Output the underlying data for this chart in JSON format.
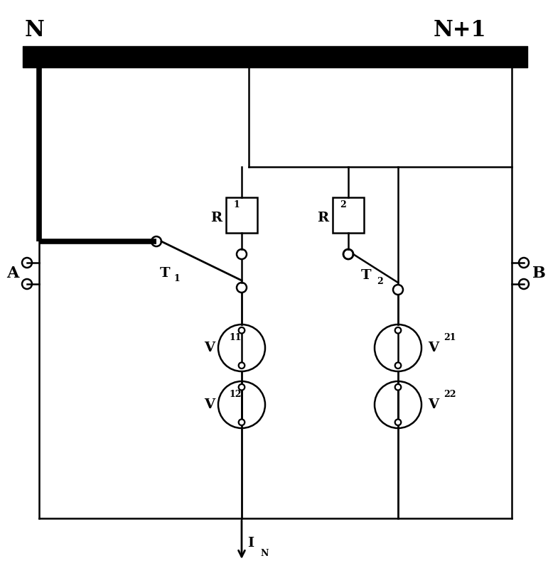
{
  "title_N": "N",
  "title_N1": "N+1",
  "label_A": "A",
  "label_B": "B",
  "label_R1": "R",
  "label_R1_sub": "1",
  "label_R2": "R",
  "label_R2_sub": "2",
  "label_T1": "T",
  "label_T1_sub": "1",
  "label_T2": "T",
  "label_T2_sub": "2",
  "label_V11": "V",
  "label_V11_sub": "11",
  "label_V12": "V",
  "label_V12_sub": "12",
  "label_V21": "V",
  "label_V21_sub": "21",
  "label_V22": "V",
  "label_V22_sub": "22",
  "label_IN": "I",
  "label_IN_sub": "N",
  "line_color": "#000000",
  "bg_color": "#ffffff"
}
